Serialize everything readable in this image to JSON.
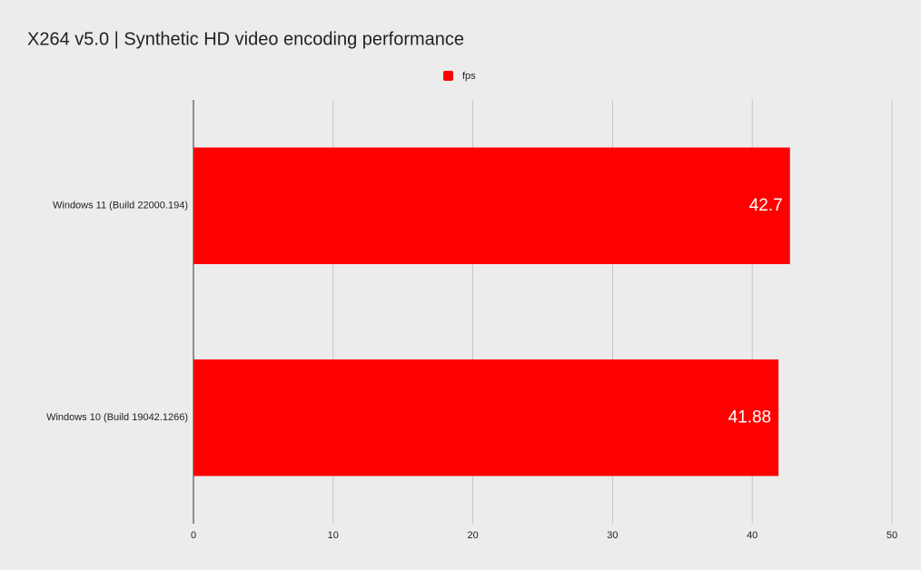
{
  "chart_data": {
    "type": "bar",
    "orientation": "horizontal",
    "title": "X264 v5.0 | Synthetic HD video encoding performance",
    "categories": [
      "Windows 11 (Build 22000.194)",
      "Windows 10 (Build 19042.1266)"
    ],
    "series": [
      {
        "name": "fps",
        "color": "#ff0000",
        "values": [
          42.7,
          41.88
        ]
      }
    ],
    "xlim": [
      0,
      50
    ],
    "xticks": [
      0,
      10,
      20,
      30,
      40,
      50
    ],
    "grid": true,
    "legend": "top"
  }
}
